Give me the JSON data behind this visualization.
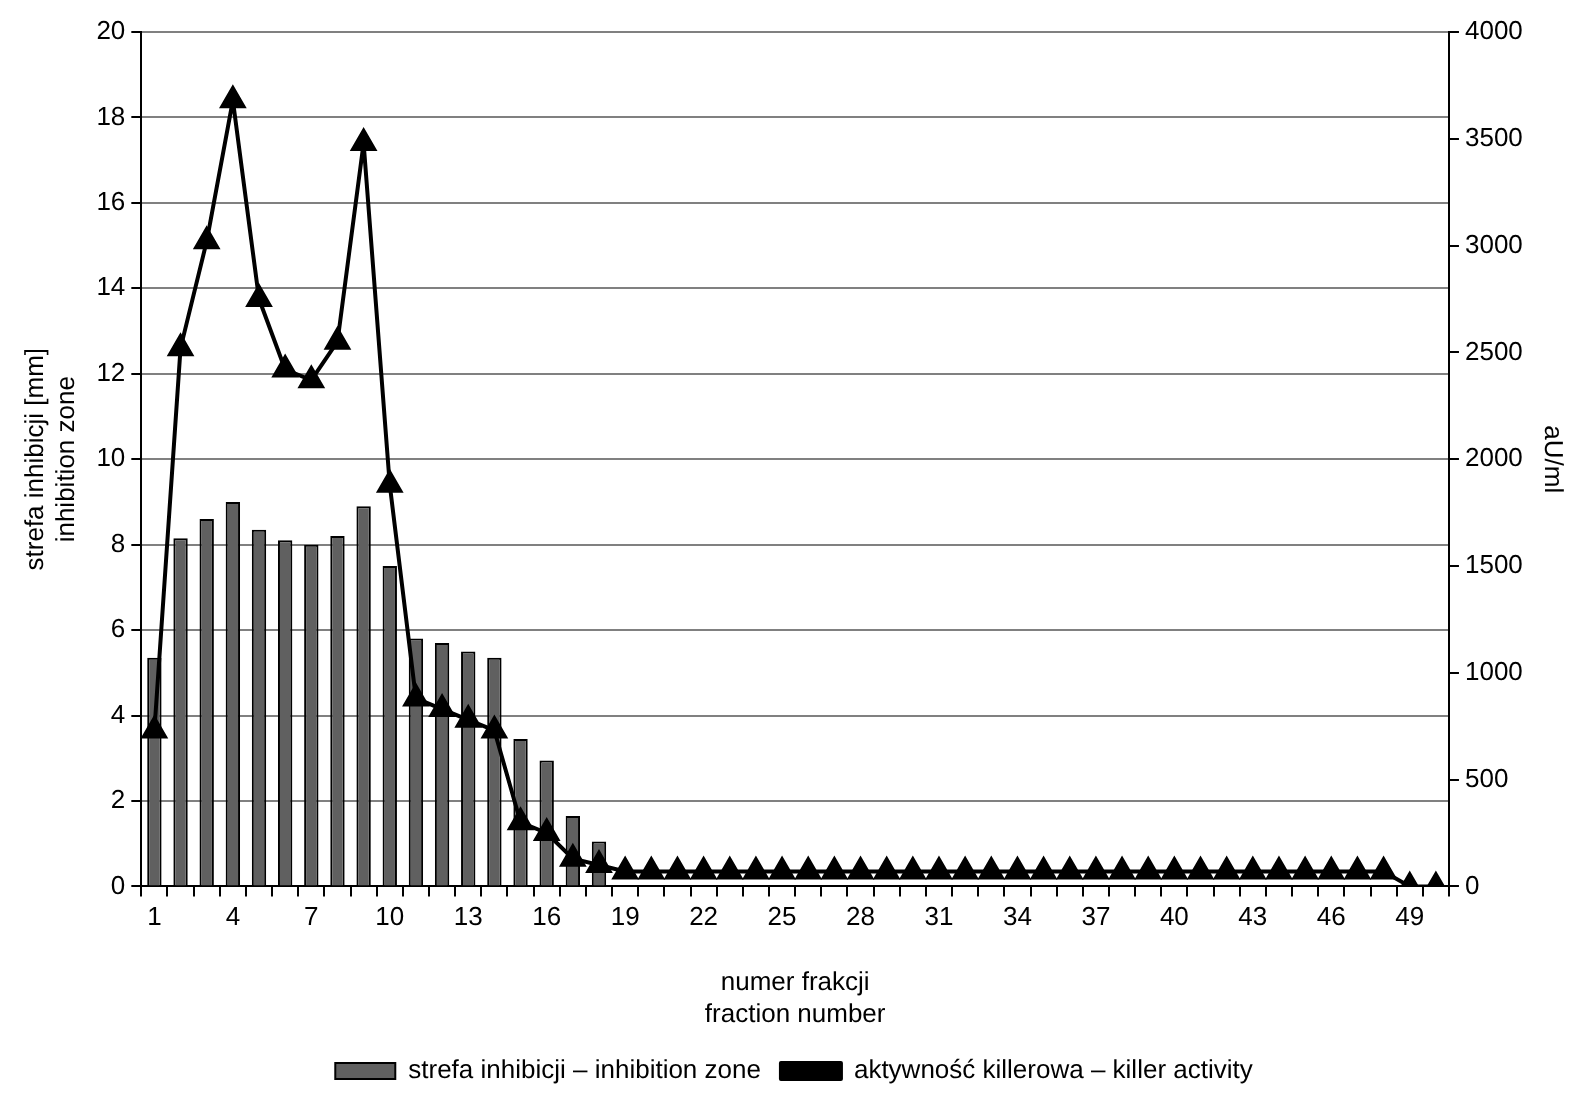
{
  "chart_data": {
    "type": "bar",
    "xlabel": [
      "numer frakcji",
      "fraction number"
    ],
    "ylabel": [
      "strefa inhibicji [mm]",
      "inhibition zone"
    ],
    "y2label": "aU/ml",
    "categories": [
      "1",
      null,
      null,
      "4",
      null,
      null,
      "7",
      null,
      null,
      "10",
      null,
      null,
      "13",
      null,
      null,
      "16",
      null,
      null,
      "19",
      null,
      null,
      "22",
      null,
      null,
      "25",
      null,
      null,
      "28",
      null,
      null,
      "31",
      null,
      null,
      "34",
      null,
      null,
      "37",
      null,
      null,
      "40",
      null,
      null,
      "43",
      null,
      null,
      "46",
      null,
      null,
      "49",
      null
    ],
    "series": [
      {
        "name": "strefa inhibicji – inhibition zone",
        "color": "#606060",
        "values": [
          5.35,
          8.15,
          8.6,
          9.0,
          8.35,
          8.1,
          8.0,
          8.2,
          8.9,
          7.5,
          5.8,
          5.7,
          5.5,
          5.35,
          3.45,
          2.95,
          1.65,
          1.05,
          0,
          0,
          0,
          0,
          0,
          0,
          0,
          0,
          0,
          0,
          0,
          0,
          0,
          0,
          0,
          0,
          0,
          0,
          0,
          0,
          0,
          0,
          0,
          0,
          0,
          0,
          0,
          0,
          0,
          0,
          0,
          0
        ]
      },
      {
        "name": "aktywność killerowa – killer activity",
        "type": "line",
        "axis": "y2",
        "color": "#000000",
        "marker": "triangle",
        "values": [
          730,
          2520,
          3020,
          3680,
          2750,
          2420,
          2370,
          2550,
          3480,
          1880,
          880,
          830,
          780,
          730,
          300,
          250,
          130,
          100,
          70,
          70,
          70,
          70,
          70,
          70,
          70,
          70,
          70,
          70,
          70,
          70,
          70,
          70,
          70,
          70,
          70,
          70,
          70,
          70,
          70,
          70,
          70,
          70,
          70,
          70,
          70,
          70,
          70,
          70,
          0,
          0
        ]
      }
    ],
    "ylim": [
      0,
      20
    ],
    "yticks": [
      0,
      2,
      4,
      6,
      8,
      10,
      12,
      14,
      16,
      18,
      20
    ],
    "y2lim": [
      0,
      4000
    ],
    "y2ticks": [
      0,
      500,
      1000,
      1500,
      2000,
      2500,
      3000,
      3500,
      4000
    ],
    "grid": "y",
    "legend": "bottom"
  }
}
